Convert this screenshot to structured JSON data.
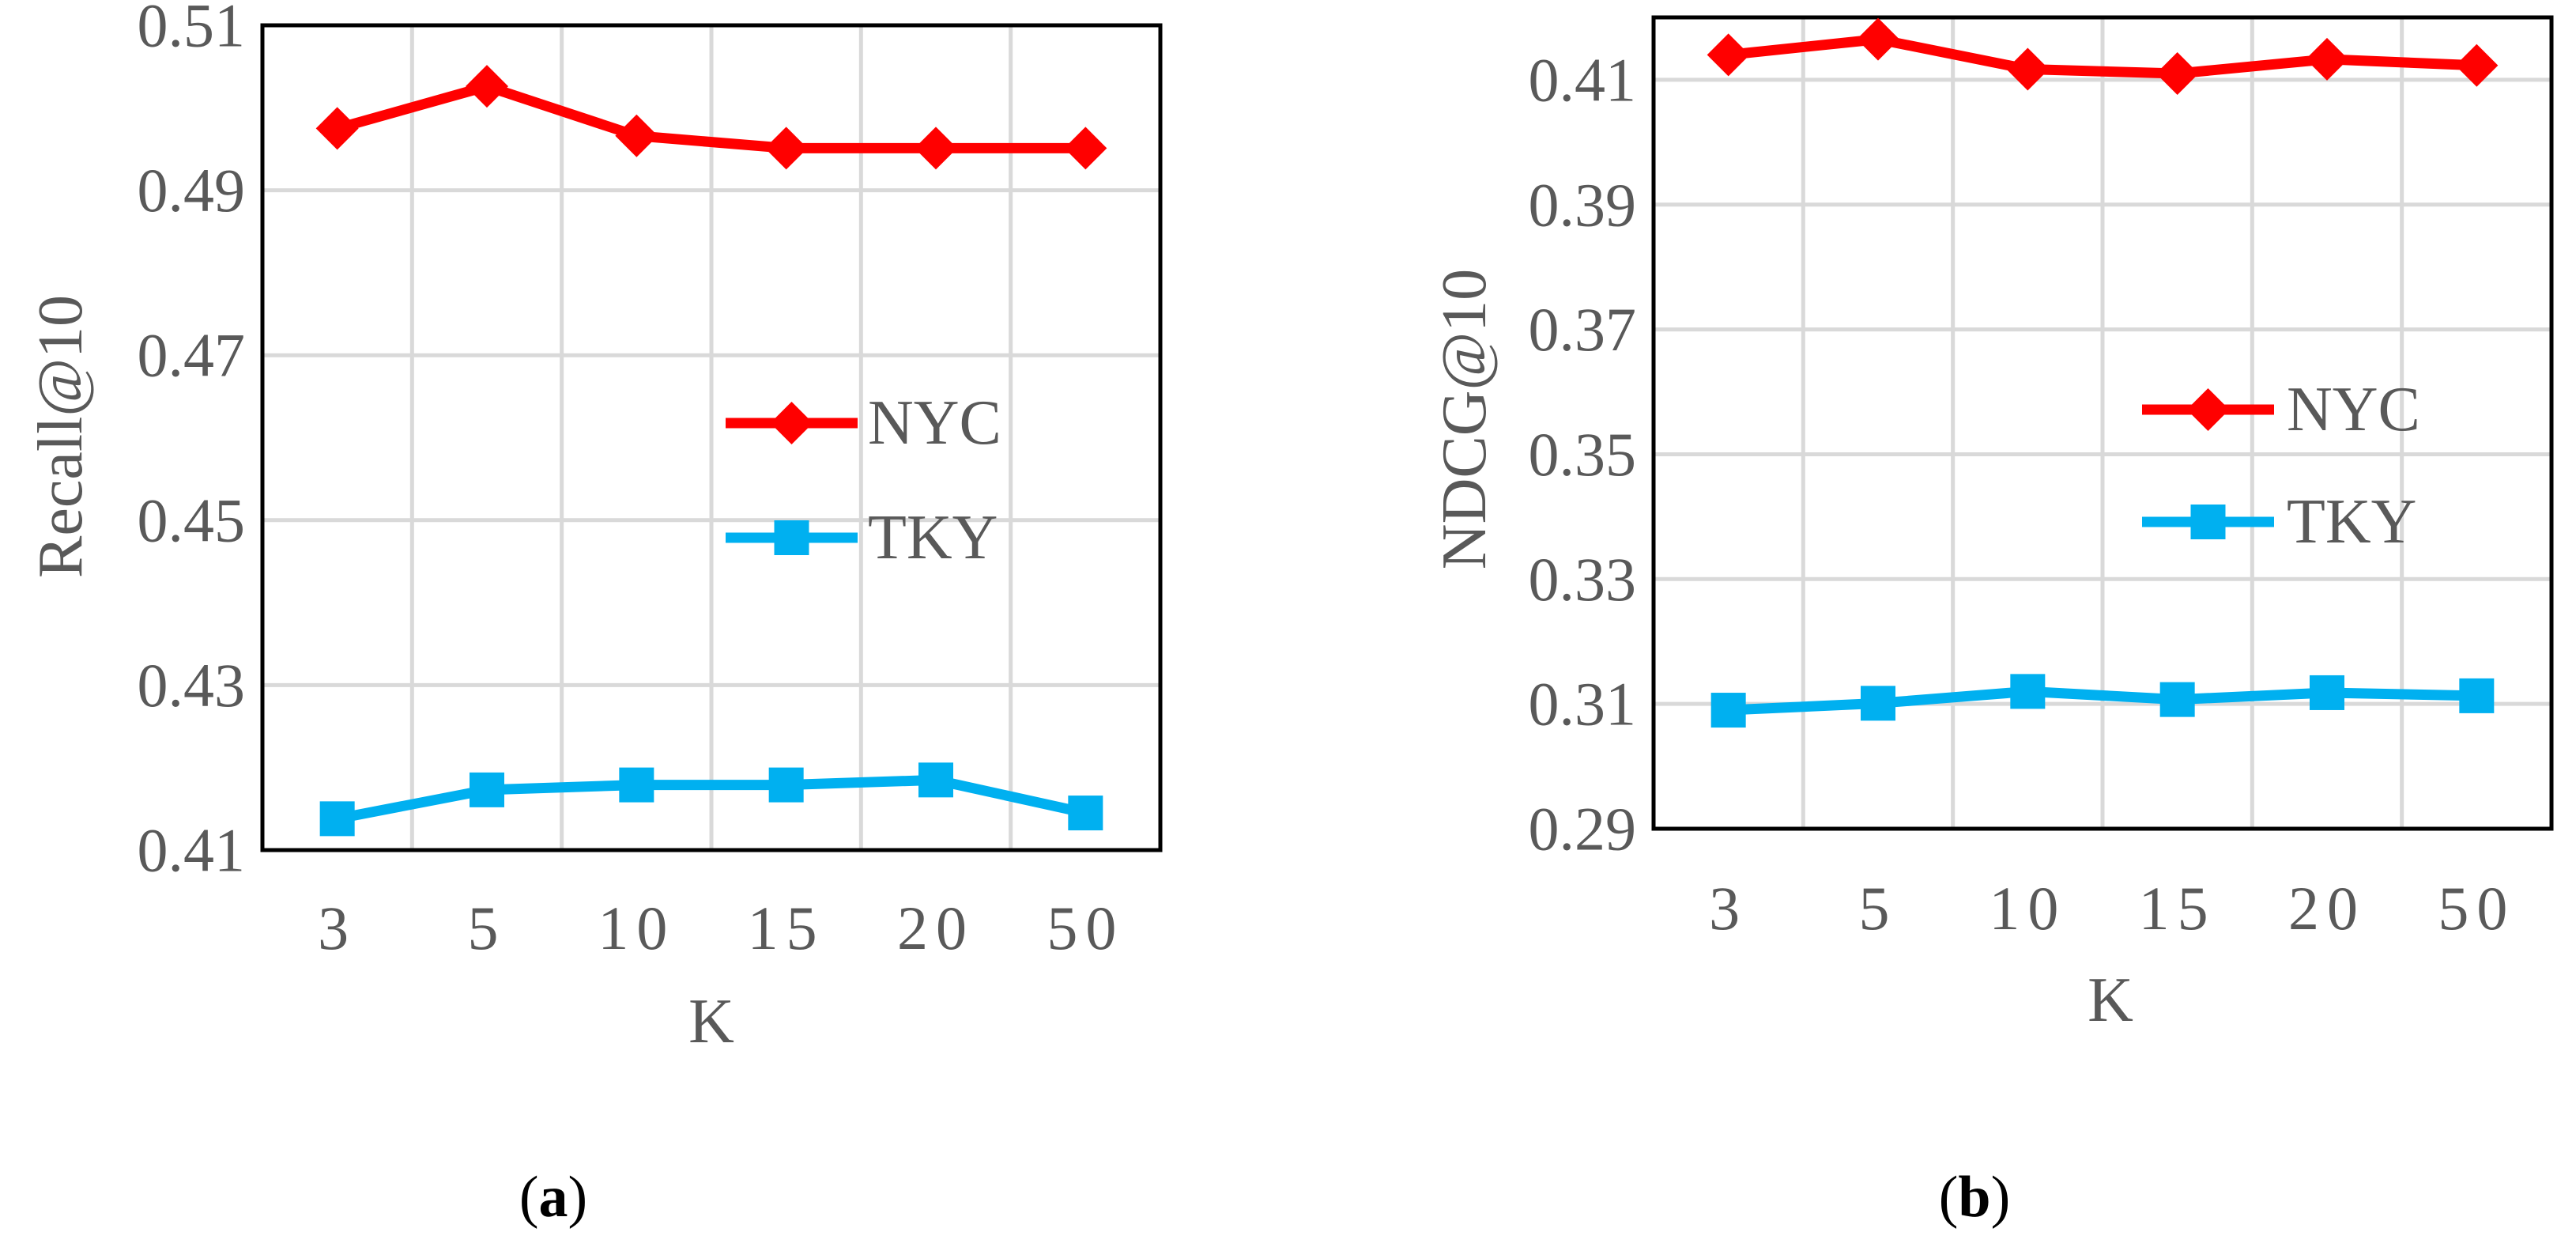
{
  "chart_data": [
    {
      "type": "line",
      "panel_label": "a",
      "xlabel": "K",
      "ylabel": "Recall@10",
      "categories": [
        "3",
        "5",
        "10",
        "15",
        "20",
        "50"
      ],
      "ylim": [
        0.41,
        0.51
      ],
      "yticks": [
        "0.41",
        "0.43",
        "0.45",
        "0.47",
        "0.49",
        "0.51"
      ],
      "grid": true,
      "legend_placement": "center-right",
      "series": [
        {
          "name": "NYC",
          "color": "#ff0000",
          "marker": "diamond",
          "values": [
            0.4975,
            0.5026,
            0.4966,
            0.4951,
            0.4951,
            0.4951
          ]
        },
        {
          "name": "TKY",
          "color": "#00b0f0",
          "marker": "square",
          "values": [
            0.4138,
            0.4173,
            0.4179,
            0.4179,
            0.4185,
            0.4145
          ]
        }
      ]
    },
    {
      "type": "line",
      "panel_label": "b",
      "xlabel": "K",
      "ylabel": "NDCG@10",
      "categories": [
        "3",
        "5",
        "10",
        "15",
        "20",
        "50"
      ],
      "ylim": [
        0.29,
        0.42
      ],
      "yticks": [
        "0.29",
        "0.31",
        "0.33",
        "0.35",
        "0.37",
        "0.39",
        "0.41"
      ],
      "grid": true,
      "legend_placement": "center-right",
      "series": [
        {
          "name": "NYC",
          "color": "#ff0000",
          "marker": "diamond",
          "values": [
            0.414,
            0.4165,
            0.4117,
            0.411,
            0.4133,
            0.4123
          ]
        },
        {
          "name": "TKY",
          "color": "#00b0f0",
          "marker": "square",
          "values": [
            0.309,
            0.3101,
            0.312,
            0.3107,
            0.3118,
            0.3113
          ]
        }
      ]
    }
  ]
}
